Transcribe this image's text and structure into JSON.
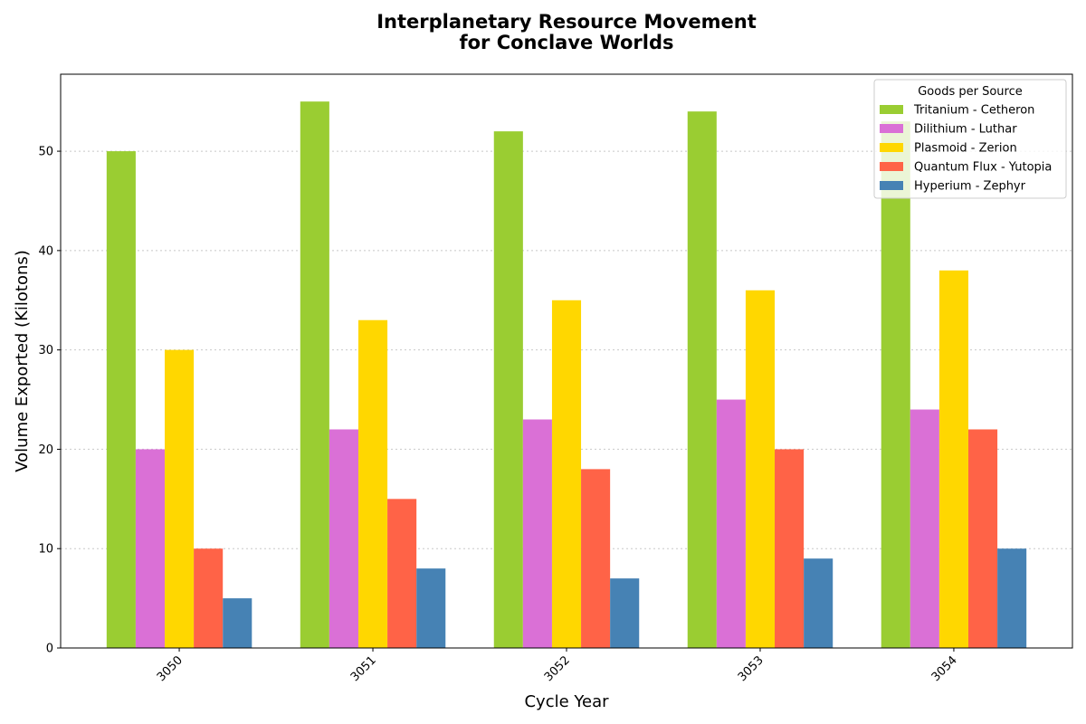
{
  "chart_data": {
    "type": "bar",
    "title_lines": [
      "Interplanetary Resource Movement",
      "for Conclave Worlds"
    ],
    "xlabel": "Cycle Year",
    "ylabel": "Volume Exported (Kilotons)",
    "categories": [
      "3050",
      "3051",
      "3052",
      "3053",
      "3054"
    ],
    "ylim": [
      0,
      57.75
    ],
    "yticks": [
      0,
      10,
      20,
      30,
      40,
      50
    ],
    "grid": "horizontal dotted",
    "legend": {
      "title": "Goods per Source",
      "placement": "top-right"
    },
    "series": [
      {
        "name": "Tritanium - Cetheron",
        "color": "#9ACD32",
        "values": [
          50,
          55,
          52,
          54,
          53
        ]
      },
      {
        "name": "Dilithium - Luthar",
        "color": "#DA70D6",
        "values": [
          20,
          22,
          23,
          25,
          24
        ]
      },
      {
        "name": "Plasmoid - Zerion",
        "color": "#FFD700",
        "values": [
          30,
          33,
          35,
          36,
          38
        ]
      },
      {
        "name": "Quantum Flux - Yutopia",
        "color": "#FF6347",
        "values": [
          10,
          15,
          18,
          20,
          22
        ]
      },
      {
        "name": "Hyperium - Zephyr",
        "color": "#4682B4",
        "values": [
          5,
          8,
          7,
          9,
          10
        ]
      }
    ]
  }
}
